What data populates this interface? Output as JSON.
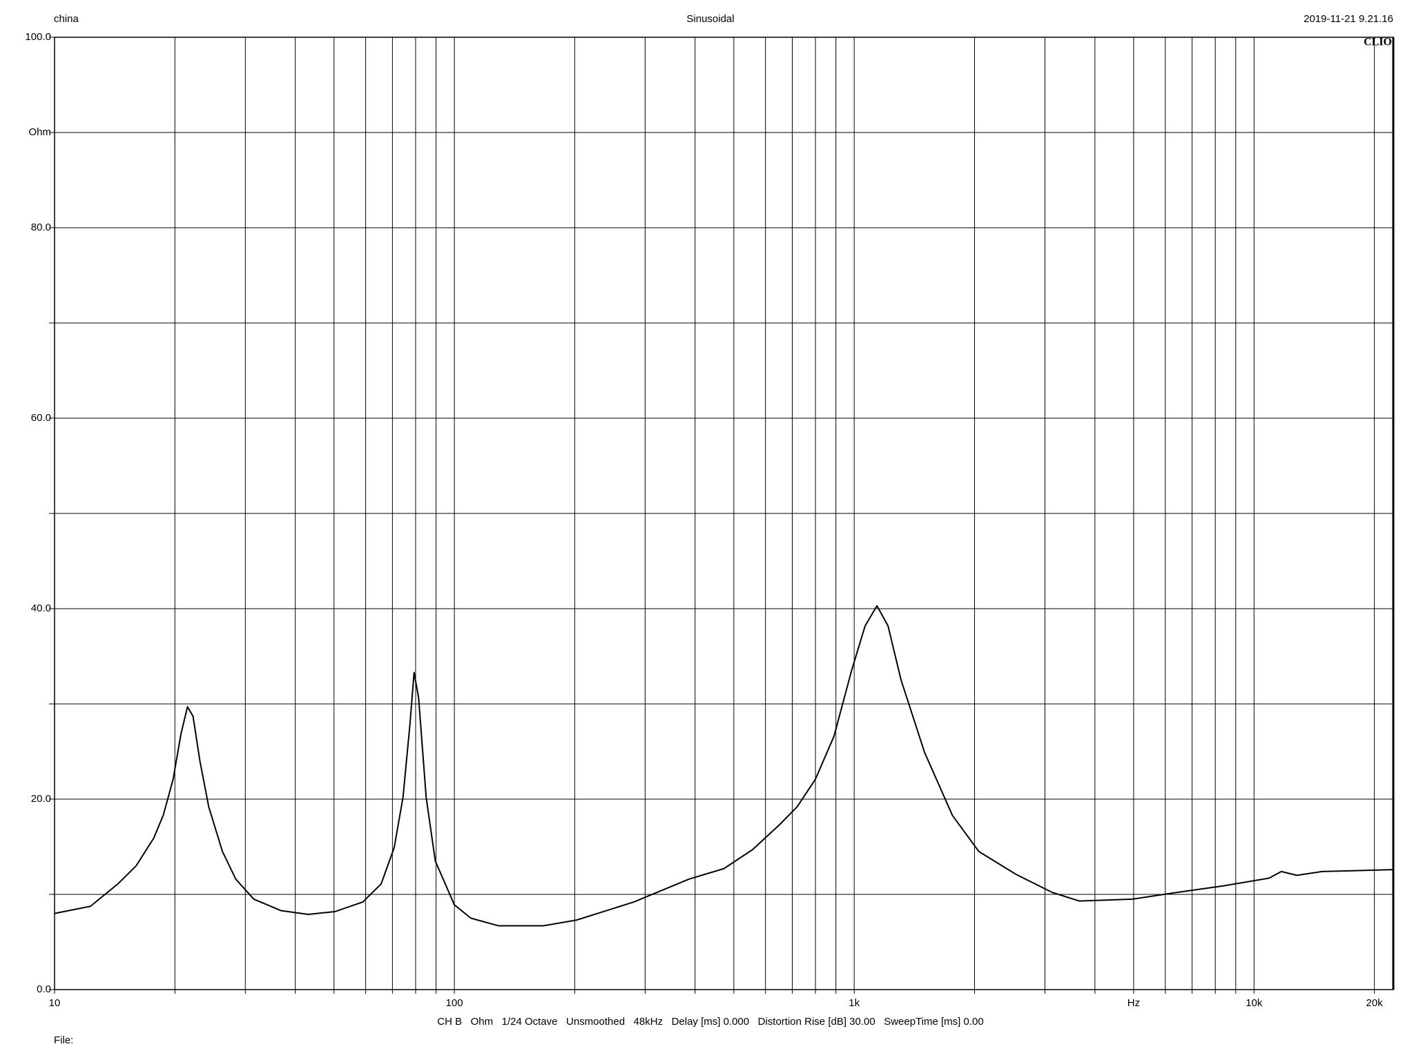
{
  "chart_data": {
    "type": "line",
    "header_left": "china",
    "title": "Sinusoidal",
    "header_right": "2019-11-21 9.21.16",
    "brand": "CLIO",
    "footer": "CH B   Ohm   1/24 Octave   Unsmoothed   48kHz   Delay [ms] 0.000   Distortion Rise [dB] 30.00   SweepTime [ms] 0.00",
    "file_label": "File:",
    "xscale": "log",
    "grid": true,
    "xlim": [
      10,
      22300
    ],
    "ylim": [
      0,
      100
    ],
    "xticks": [
      10,
      {
        "value": 20,
        "label": null
      },
      {
        "value": 30,
        "label": null
      },
      {
        "value": 40,
        "label": null
      },
      {
        "value": 50,
        "label": null
      },
      {
        "value": 60,
        "label": null
      },
      {
        "value": 70,
        "label": null
      },
      {
        "value": 80,
        "label": null
      },
      {
        "value": 90,
        "label": null
      },
      100,
      {
        "value": 200,
        "label": null
      },
      {
        "value": 300,
        "label": null
      },
      {
        "value": 400,
        "label": null
      },
      {
        "value": 500,
        "label": null
      },
      {
        "value": 600,
        "label": null
      },
      {
        "value": 700,
        "label": null
      },
      {
        "value": 800,
        "label": null
      },
      {
        "value": 900,
        "label": null
      },
      {
        "value": 1000,
        "label": "1k"
      },
      {
        "value": 2000,
        "label": null
      },
      {
        "value": 3000,
        "label": null
      },
      {
        "value": 4000,
        "label": null
      },
      {
        "value": 5000,
        "label": "Hz"
      },
      {
        "value": 6000,
        "label": null
      },
      {
        "value": 7000,
        "label": null
      },
      {
        "value": 8000,
        "label": null
      },
      {
        "value": 9000,
        "label": null
      },
      {
        "value": 10000,
        "label": "10k"
      },
      {
        "value": 20000,
        "label": "20k"
      }
    ],
    "yticks": [
      {
        "value": 0,
        "label": "0.0"
      },
      {
        "value": 10,
        "label": null
      },
      {
        "value": 20,
        "label": "20.0"
      },
      {
        "value": 30,
        "label": null
      },
      {
        "value": 40,
        "label": "40.0"
      },
      {
        "value": 50,
        "label": null
      },
      {
        "value": 60,
        "label": "60.0"
      },
      {
        "value": 70,
        "label": null
      },
      {
        "value": 80,
        "label": "80.0"
      },
      {
        "value": 90,
        "label": "Ohm"
      },
      {
        "value": 100,
        "label": "100.0"
      }
    ],
    "series": [
      {
        "name": "CH B",
        "color": "#000000",
        "x": [
          10,
          12.3,
          14.4,
          16.0,
          17.7,
          18.7,
          19.8,
          20.7,
          21.5,
          22.2,
          23.1,
          24.3,
          26.3,
          28.4,
          31.5,
          36.8,
          43.1,
          50.4,
          59,
          65.6,
          70.7,
          74.4,
          77.4,
          79.3,
          81.4,
          85.0,
          89.6,
          100,
          110,
          129,
          167,
          202,
          281,
          386,
          472,
          557,
          650,
          720,
          800,
          890,
          985,
          1065,
          1140,
          1215,
          1310,
          1500,
          1760,
          2050,
          2540,
          3130,
          3660,
          4970,
          6400,
          8400,
          10900,
          11700,
          12800,
          14800,
          18300,
          22300
        ],
        "values": [
          8.0,
          8.75,
          11.1,
          13.0,
          15.9,
          18.3,
          22.1,
          26.8,
          29.7,
          28.7,
          24.0,
          19.2,
          14.5,
          11.6,
          9.5,
          8.3,
          7.9,
          8.2,
          9.2,
          11.1,
          14.9,
          20.2,
          27.8,
          33.3,
          30.6,
          20.2,
          13.5,
          8.9,
          7.5,
          6.7,
          6.7,
          7.3,
          9.2,
          11.6,
          12.7,
          14.7,
          17.3,
          19.2,
          22.1,
          26.6,
          33.5,
          38.2,
          40.3,
          38.2,
          32.5,
          24.9,
          18.3,
          14.5,
          12.1,
          10.2,
          9.3,
          9.5,
          10.2,
          10.9,
          11.7,
          12.4,
          12.0,
          12.4,
          12.5,
          12.6
        ]
      }
    ]
  }
}
